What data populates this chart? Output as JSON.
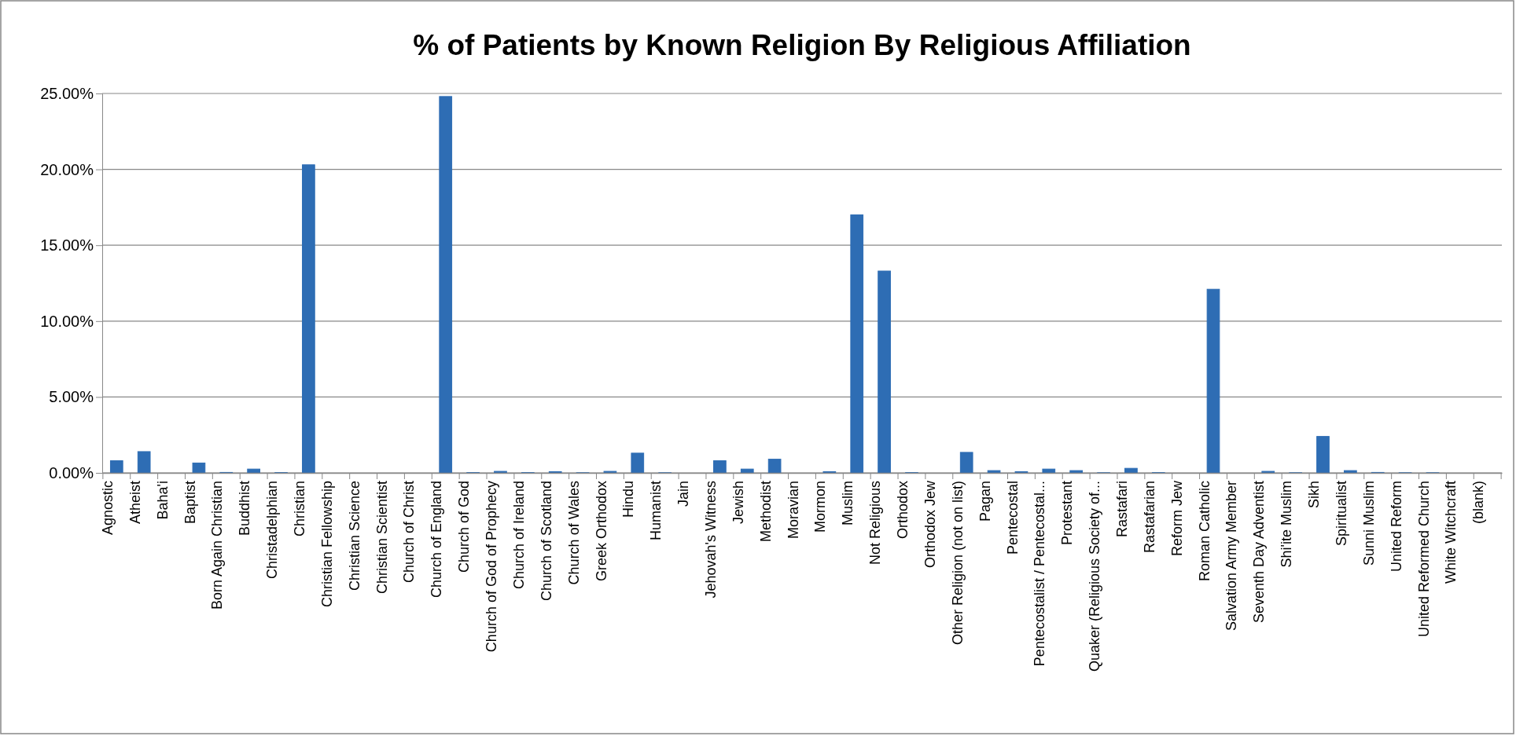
{
  "chart_data": {
    "type": "bar",
    "title": "% of Patients by Known Religion By Religious Affiliation",
    "categories": [
      "Agnostic",
      "Atheist",
      "Baha'i",
      "Baptist",
      "Born Again Christian",
      "Buddhist",
      "Christadelphian",
      "Christian",
      "Christian Fellowship",
      "Christian Science",
      "Christian Scientist",
      "Church of Christ",
      "Church of England",
      "Church of God",
      "Church of God of Prophecy",
      "Church of Ireland",
      "Church of Scotland",
      "Church of Wales",
      "Greek Orthodox",
      "Hindu",
      "Humanist",
      "Jain",
      "Jehovah's Witness",
      "Jewish",
      "Methodist",
      "Moravian",
      "Mormon",
      "Muslim",
      "Not Religious",
      "Orthodox",
      "Orthodox Jew",
      "Other Religion (not on list)",
      "Pagan",
      "Pentecostal",
      "Pentecostalist / Pentecostal...",
      "Protestant",
      "Quaker (Religious Society of...",
      "Rastafari",
      "Rastafarian",
      "Reform Jew",
      "Roman Catholic",
      "Salvation Army Member",
      "Seventh Day Adventist",
      "Shi'ite Muslim",
      "Sikh",
      "Spiritualist",
      "Sunni Muslim",
      "United Reform",
      "United Reformed Church",
      "White Witchcraft",
      "(blank)"
    ],
    "values": [
      0.8,
      1.4,
      0,
      0.65,
      0.03,
      0.25,
      0.02,
      20.3,
      0,
      0,
      0,
      0,
      24.8,
      0.02,
      0.1,
      0.02,
      0.08,
      0.01,
      0.1,
      1.3,
      0.01,
      0,
      0.8,
      0.25,
      0.9,
      0,
      0.08,
      17,
      13.3,
      0.02,
      0,
      1.35,
      0.15,
      0.08,
      0.25,
      0.15,
      0.01,
      0.3,
      0.02,
      0,
      12.1,
      0,
      0.1,
      0.01,
      2.4,
      0.15,
      0.03,
      0.01,
      0.01,
      0,
      0
    ],
    "color": "#2e6db4",
    "ylim": [
      0,
      25
    ],
    "yticks": [
      {
        "value": 0,
        "label": "0.00%"
      },
      {
        "value": 5,
        "label": "5.00%"
      },
      {
        "value": 10,
        "label": "10.00%"
      },
      {
        "value": 15,
        "label": "15.00%"
      },
      {
        "value": 20,
        "label": "20.00%"
      },
      {
        "value": 25,
        "label": "25.00%"
      }
    ],
    "grid": "y"
  }
}
